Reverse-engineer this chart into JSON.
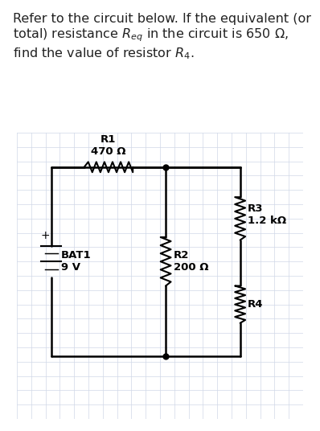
{
  "title_text": "Refer to the circuit below. If the equivalent (or\ntotal) resistance $R_{eq}$ in the circuit is 650 Ω,\nfind the value of resistor $R_4$.",
  "title_fontsize": 11.5,
  "bg_color": "#ffffff",
  "grid_color": "#d0d8e8",
  "circuit": {
    "bat_label": "BAT1\n9 V",
    "R1_label": "R1\n470 Ω",
    "R2_label": "R2\n200 Ω",
    "R3_label": "R3\n1.2 kΩ",
    "R4_label": "R4",
    "wire_color": "#000000",
    "resistor_color": "#000000"
  }
}
